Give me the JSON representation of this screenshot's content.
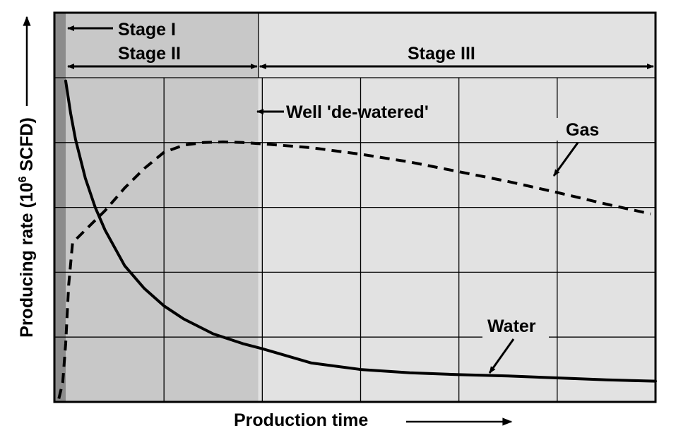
{
  "chart_data": {
    "type": "line",
    "title": "",
    "xlabel": "Production time",
    "ylabel_main": "Producing rate (10",
    "ylabel_sup": "6",
    "ylabel_tail": " SCFD)",
    "xlim": [
      0,
      6
    ],
    "ylim": [
      0,
      5
    ],
    "x_gridlines": [
      1,
      2,
      3,
      4,
      5
    ],
    "y_gridlines": [
      1,
      2,
      3,
      4
    ],
    "grid": true,
    "stages": [
      {
        "label": "Stage I",
        "x_start": -0.12,
        "x_end": 0
      },
      {
        "label": "Stage II",
        "x_start": 0,
        "x_end": 1.96
      },
      {
        "label": "Stage III",
        "x_start": 1.96,
        "x_end": 6
      }
    ],
    "annotations": {
      "dewatered": "Well 'de-watered'",
      "gas": "Gas",
      "water": "Water"
    },
    "colors": {
      "stage1": "#8c8c8c",
      "stage2": "#c8c8c8",
      "stage3": "#e2e2e2",
      "line": "#000000"
    },
    "series": [
      {
        "name": "Gas",
        "style": "dashed",
        "x": [
          -0.07,
          -0.03,
          0.0,
          0.03,
          0.07,
          0.1,
          0.2,
          0.4,
          0.6,
          0.8,
          1.0,
          1.2,
          1.4,
          1.6,
          1.8,
          2.0,
          2.5,
          3.0,
          3.5,
          4.0,
          4.5,
          5.0,
          5.5,
          5.95
        ],
        "y": [
          0.05,
          0.3,
          0.9,
          1.8,
          2.45,
          2.5,
          2.65,
          2.95,
          3.3,
          3.6,
          3.85,
          3.96,
          4.0,
          4.01,
          4.0,
          3.98,
          3.92,
          3.82,
          3.7,
          3.55,
          3.4,
          3.23,
          3.05,
          2.9
        ]
      },
      {
        "name": "Water",
        "style": "solid",
        "x": [
          0.0,
          0.05,
          0.1,
          0.2,
          0.3,
          0.4,
          0.6,
          0.8,
          1.0,
          1.2,
          1.5,
          1.8,
          2.0,
          2.5,
          3.0,
          3.5,
          4.0,
          4.5,
          5.0,
          5.5,
          6.0
        ],
        "y": [
          4.95,
          4.45,
          4.05,
          3.45,
          3.0,
          2.65,
          2.1,
          1.75,
          1.48,
          1.28,
          1.05,
          0.9,
          0.82,
          0.6,
          0.5,
          0.45,
          0.42,
          0.4,
          0.37,
          0.34,
          0.32
        ]
      }
    ]
  }
}
